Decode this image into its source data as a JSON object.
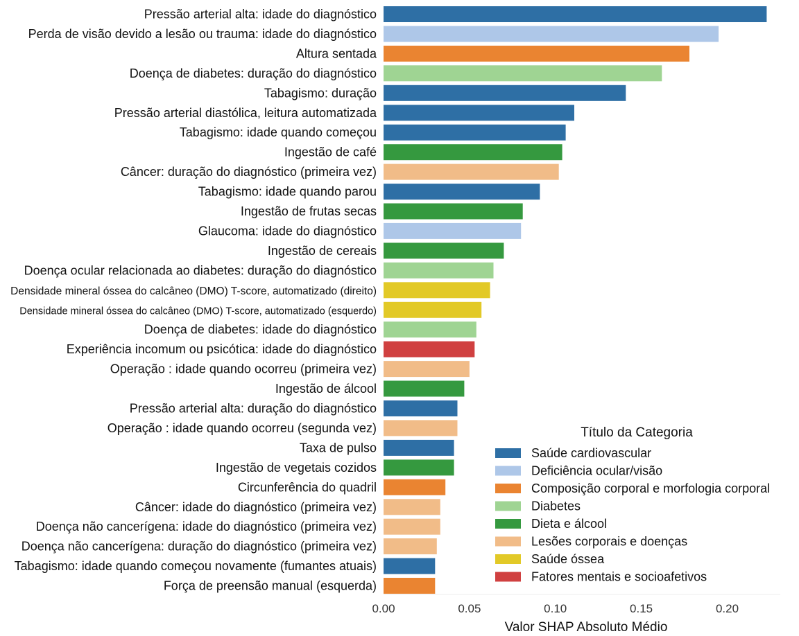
{
  "chart_data": {
    "type": "bar",
    "orientation": "horizontal",
    "xlabel": "Valor SHAP Absoluto Médio",
    "xlim": [
      0,
      0.23
    ],
    "xticks": [
      "0.00",
      "0.05",
      "0.10",
      "0.15",
      "0.20"
    ],
    "grid": false,
    "legend": {
      "title": "Título da Categoria",
      "placement": "bottom-right",
      "entries": [
        {
          "name": "Saúde cardiovascular",
          "color": "#2e6fa5"
        },
        {
          "name": "Deficiência ocular/visão",
          "color": "#aec7e8"
        },
        {
          "name": "Composição corporal e morfologia corporal",
          "color": "#ea8431"
        },
        {
          "name": "Diabetes",
          "color": "#9fd493"
        },
        {
          "name": "Dieta e álcool",
          "color": "#35993f"
        },
        {
          "name": "Lesões corporais e doenças",
          "color": "#f1bc88"
        },
        {
          "name": "Saúde óssea",
          "color": "#e2c927"
        },
        {
          "name": "Fatores mentais e socioafetivos",
          "color": "#d04040"
        }
      ]
    },
    "bars": [
      {
        "label": "Pressão arterial alta: idade do diagnóstico",
        "value": 0.223,
        "category": 0
      },
      {
        "label": "Perda de visão devido a lesão ou trauma: idade do diagnóstico",
        "value": 0.195,
        "category": 1
      },
      {
        "label": "Altura sentada",
        "value": 0.178,
        "category": 2
      },
      {
        "label": "Doença de diabetes: duração do diagnóstico",
        "value": 0.162,
        "category": 3
      },
      {
        "label": "Tabagismo: duração",
        "value": 0.141,
        "category": 0
      },
      {
        "label": "Pressão arterial diastólica, leitura automatizada",
        "value": 0.111,
        "category": 0
      },
      {
        "label": "Tabagismo: idade quando começou",
        "value": 0.106,
        "category": 0
      },
      {
        "label": "Ingestão de café",
        "value": 0.104,
        "category": 4
      },
      {
        "label": "Câncer: duração do diagnóstico (primeira vez)",
        "value": 0.102,
        "category": 5
      },
      {
        "label": "Tabagismo: idade quando parou",
        "value": 0.091,
        "category": 0
      },
      {
        "label": "Ingestão de frutas secas",
        "value": 0.081,
        "category": 4
      },
      {
        "label": "Glaucoma: idade do diagnóstico",
        "value": 0.08,
        "category": 1
      },
      {
        "label": "Ingestão de cereais",
        "value": 0.07,
        "category": 4
      },
      {
        "label": "Doença ocular relacionada ao diabetes: duração do diagnóstico",
        "value": 0.064,
        "category": 3
      },
      {
        "label": "Densidade mineral óssea do calcâneo (DMO) T-score, automatizado (direito)",
        "value": 0.062,
        "category": 6
      },
      {
        "label": "Densidade mineral óssea do calcâneo (DMO) T-score, automatizado (esquerdo)",
        "value": 0.057,
        "category": 6
      },
      {
        "label": "Doença de diabetes: idade do diagnóstico",
        "value": 0.054,
        "category": 3
      },
      {
        "label": "Experiência incomum ou psicótica: idade do diagnóstico",
        "value": 0.053,
        "category": 7
      },
      {
        "label": "Operação : idade quando ocorreu (primeira vez)",
        "value": 0.05,
        "category": 5
      },
      {
        "label": "Ingestão de álcool",
        "value": 0.047,
        "category": 4
      },
      {
        "label": "Pressão arterial alta: duração do diagnóstico",
        "value": 0.043,
        "category": 0
      },
      {
        "label": "Operação : idade quando ocorreu (segunda vez)",
        "value": 0.043,
        "category": 5
      },
      {
        "label": "Taxa de pulso",
        "value": 0.041,
        "category": 0
      },
      {
        "label": "Ingestão de vegetais cozidos",
        "value": 0.041,
        "category": 4
      },
      {
        "label": "Circunferência do quadril",
        "value": 0.036,
        "category": 2
      },
      {
        "label": "Câncer: idade do diagnóstico (primeira vez)",
        "value": 0.033,
        "category": 5
      },
      {
        "label": "Doença não cancerígena: idade do diagnóstico (primeira vez)",
        "value": 0.033,
        "category": 5
      },
      {
        "label": "Doença não cancerígena: duração do diagnóstico (primeira vez)",
        "value": 0.031,
        "category": 5
      },
      {
        "label": "Tabagismo: idade quando começou novamente (fumantes atuais)",
        "value": 0.03,
        "category": 0
      },
      {
        "label": "Força de preensão manual (esquerda)",
        "value": 0.03,
        "category": 2
      }
    ]
  }
}
